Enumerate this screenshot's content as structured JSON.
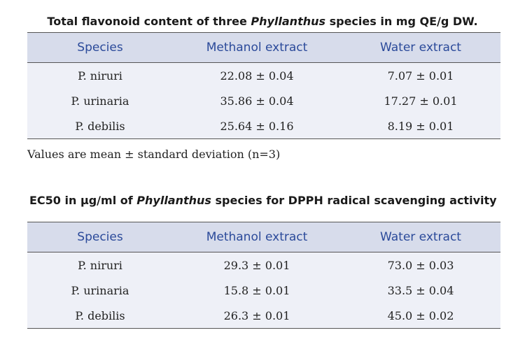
{
  "table1": {
    "title_pre": "Total flavonoid content of three ",
    "title_italic": "Phyllanthus",
    "title_post": " species in mg QE/g DW.",
    "headers": [
      "Species",
      "Methanol extract",
      "Water extract"
    ],
    "rows": [
      [
        "P. niruri",
        "22.08 ± 0.04",
        "7.07 ± 0.01"
      ],
      [
        "P. urinaria",
        "35.86 ± 0.04",
        "17.27 ± 0.01"
      ],
      [
        "P. debilis",
        "25.64 ± 0.16",
        "8.19 ± 0.01"
      ]
    ],
    "note": "Values are mean ± standard deviation (n=3)"
  },
  "table2": {
    "title_pre": "EC50 in µg/ml of ",
    "title_italic": "Phyllanthus",
    "title_post": " species for DPPH radical scavenging  activity",
    "headers": [
      "Species",
      "Methanol extract",
      "Water extract"
    ],
    "rows": [
      [
        "P. niruri",
        "29.3 ± 0.01",
        "73.0 ± 0.03"
      ],
      [
        "P. urinaria",
        "15.8 ± 0.01",
        "33.5 ± 0.04"
      ],
      [
        "P. debilis",
        "26.3 ± 0.01",
        "45.0 ± 0.02"
      ]
    ]
  }
}
